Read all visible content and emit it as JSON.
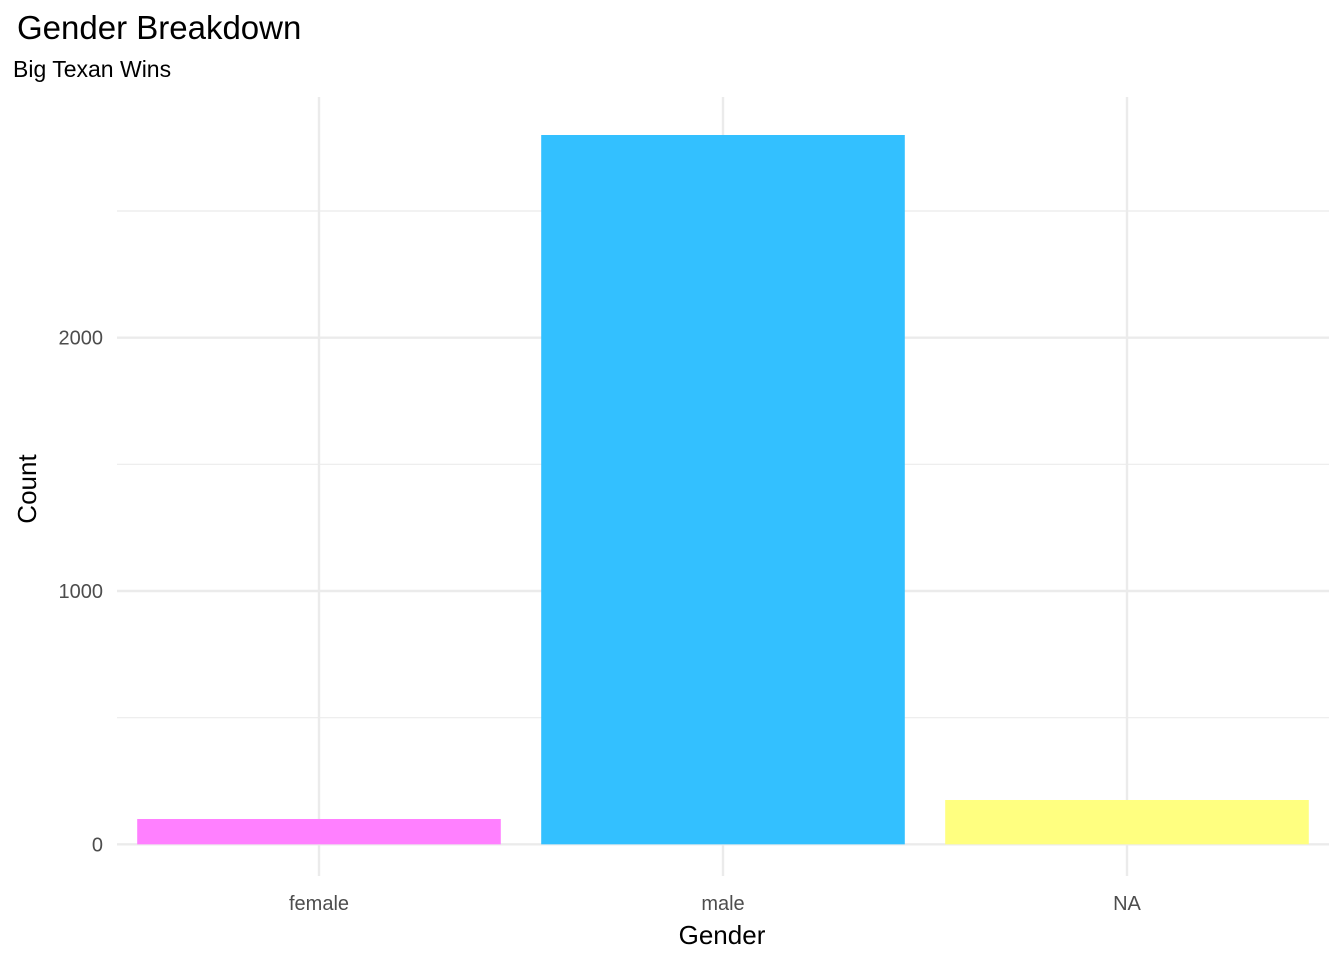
{
  "chart_data": {
    "type": "bar",
    "title": "Gender Breakdown",
    "subtitle": "Big Texan Wins",
    "xlabel": "Gender",
    "ylabel": "Count",
    "categories": [
      "female",
      "male",
      "NA"
    ],
    "values": [
      100,
      2800,
      175
    ],
    "colors": [
      "#FF80FF",
      "#33C0FF",
      "#FFFF80"
    ],
    "ylim": [
      -125,
      2950
    ],
    "yticks": [
      0,
      1000,
      2000
    ],
    "ytick_labels": [
      "0",
      "1000",
      "2000"
    ],
    "y_minor_ticks": [
      500,
      1500,
      2500
    ],
    "grid": true,
    "grid_color": "#EBEBEB",
    "legend": "none"
  }
}
